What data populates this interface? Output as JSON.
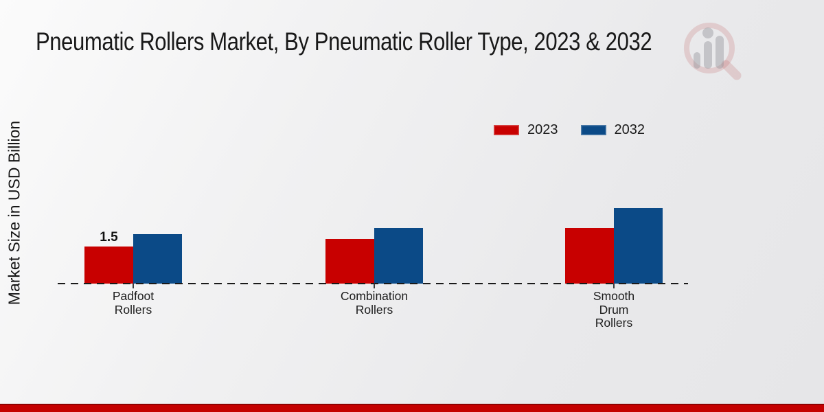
{
  "title": "Pneumatic Rollers Market, By Pneumatic Roller Type, 2023 & 2032",
  "ylabel": "Market Size in USD Billion",
  "footer_color": "#c40000",
  "watermark_icon": "magnifier-bar-chart-logo",
  "chart_data": {
    "type": "bar",
    "title": "Pneumatic Rollers Market, By Pneumatic Roller Type, 2023 & 2032",
    "xlabel": "",
    "ylabel": "Market Size in USD Billion",
    "categories": [
      "Padfoot\nRollers",
      "Combination\nRollers",
      "Smooth\nDrum\nRollers"
    ],
    "series": [
      {
        "name": "2023",
        "color": "#c80000",
        "values": [
          1.5,
          1.8,
          2.25
        ]
      },
      {
        "name": "2032",
        "color": "#0b4a87",
        "values": [
          2.0,
          2.25,
          3.05
        ]
      }
    ],
    "value_labels": [
      {
        "series": "2023",
        "category_index": 0,
        "text": "1.5"
      }
    ],
    "ylim": [
      0,
      3.5
    ],
    "grid": false,
    "baseline_style": "dashed",
    "legend_position": "top-right"
  }
}
